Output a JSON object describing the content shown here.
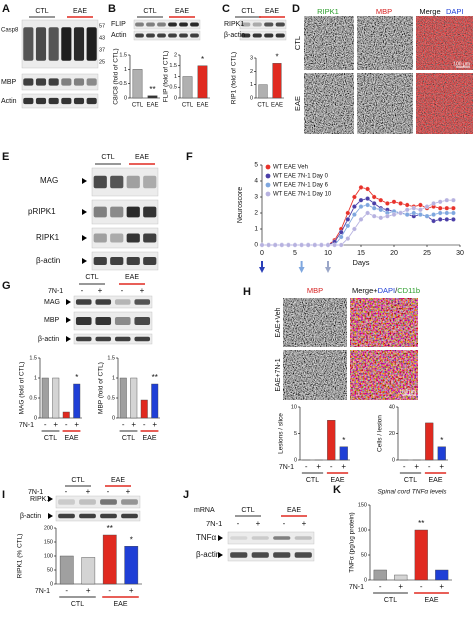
{
  "A": {
    "label": "A",
    "groups": [
      "CTL",
      "EAE"
    ],
    "bands": [
      "Casp8",
      "MBP",
      "Actin"
    ],
    "markers": [
      "57",
      "43",
      "37",
      "25"
    ]
  },
  "B": {
    "label": "B",
    "groups": [
      "CTL",
      "EAE"
    ],
    "bands": [
      "FLIP",
      "Actin"
    ],
    "charts": [
      {
        "type": "bar",
        "ylabel": "C8/C8 (fold of CTL)",
        "categories": [
          "CTL",
          "EAE"
        ],
        "values": [
          1.0,
          0.08
        ],
        "colors": [
          "#b0b0b0",
          "#333333"
        ],
        "significance": [
          null,
          "**"
        ],
        "ylim": [
          0,
          1.5
        ],
        "yticks": [
          0,
          0.5,
          1,
          1.5
        ]
      },
      {
        "type": "bar",
        "ylabel": "FLIP (fold of CTL)",
        "categories": [
          "CTL",
          "EAE"
        ],
        "values": [
          1.0,
          1.5
        ],
        "colors": [
          "#b0b0b0",
          "#e02a20"
        ],
        "significance": [
          null,
          "*"
        ],
        "ylim": [
          0,
          2
        ],
        "yticks": [
          0,
          0.5,
          1,
          1.5,
          2
        ]
      }
    ]
  },
  "C": {
    "label": "C",
    "groups": [
      "CTL",
      "EAE"
    ],
    "bands": [
      "RIPK1",
      "β-actin"
    ],
    "chart": {
      "type": "bar",
      "ylabel": "RIP1 (fold of CTL)",
      "categories": [
        "CTL",
        "EAE"
      ],
      "values": [
        1.0,
        2.6
      ],
      "colors": [
        "#b0b0b0",
        "#e02a20"
      ],
      "significance": [
        null,
        "*"
      ],
      "ylim": [
        0,
        3
      ],
      "yticks": [
        0,
        1,
        2,
        3
      ]
    }
  },
  "D": {
    "label": "D",
    "headers": [
      "RIPK1",
      "MBP",
      "Merge"
    ],
    "dapi": "DAPI",
    "rows": [
      "CTL",
      "EAE"
    ],
    "scale": "100 µm"
  },
  "E": {
    "label": "E",
    "groups": [
      "CTL",
      "EAE"
    ],
    "bands": [
      "MAG",
      "pRIPK1",
      "RIPK1",
      "β-actin"
    ]
  },
  "F": {
    "label": "F",
    "chart": {
      "type": "line",
      "ylabel": "Neuroscore",
      "xlabel": "Days",
      "x": [
        0,
        1,
        2,
        3,
        4,
        5,
        6,
        7,
        8,
        9,
        10,
        11,
        12,
        13,
        14,
        15,
        16,
        17,
        18,
        19,
        20,
        21,
        22,
        23,
        24,
        25,
        26,
        27,
        28,
        29
      ],
      "xlim": [
        0,
        30
      ],
      "xticks": [
        0,
        5,
        10,
        15,
        20,
        25,
        30
      ],
      "ylim": [
        0,
        5
      ],
      "yticks": [
        0,
        1,
        2,
        3,
        4,
        5
      ],
      "arrows": [
        0,
        6,
        10
      ],
      "arrow_colors": [
        "#2a3fb8",
        "#7fa7df",
        "#9aa6c8"
      ],
      "series": [
        {
          "name": "WT EAE Veh",
          "color": "#e8322b",
          "values": [
            0,
            0,
            0,
            0,
            0,
            0,
            0,
            0,
            0,
            0,
            0,
            0.3,
            1.0,
            2.0,
            3.0,
            3.6,
            3.5,
            3.0,
            2.8,
            2.6,
            2.7,
            2.6,
            2.5,
            2.4,
            2.5,
            2.3,
            2.4,
            2.3,
            2.3,
            2.3
          ]
        },
        {
          "name": "WT EAE 7N-1 Day 0",
          "color": "#4b3fa8",
          "values": [
            0,
            0,
            0,
            0,
            0,
            0,
            0,
            0,
            0,
            0,
            0,
            0.2,
            0.8,
            1.6,
            2.4,
            2.8,
            2.9,
            2.6,
            2.3,
            2.2,
            2.1,
            2.0,
            1.9,
            1.8,
            1.9,
            1.8,
            1.5,
            1.6,
            1.6,
            1.6
          ]
        },
        {
          "name": "WT EAE 7N-1 Day 6",
          "color": "#7fa7df",
          "values": [
            0,
            0,
            0,
            0,
            0,
            0,
            0,
            0,
            0,
            0,
            0,
            0,
            0.5,
            1.2,
            1.9,
            2.4,
            2.5,
            2.3,
            2.2,
            2.0,
            2.1,
            2.0,
            1.9,
            2.0,
            1.9,
            1.8,
            1.9,
            2.0,
            2.0,
            2.0
          ]
        },
        {
          "name": "WT EAE 7N-1 Day 10",
          "color": "#b7b2e0",
          "values": [
            0,
            0,
            0,
            0,
            0,
            0,
            0,
            0,
            0,
            0,
            0,
            0,
            0,
            0.4,
            1.0,
            1.6,
            2.0,
            1.8,
            1.7,
            1.8,
            1.9,
            2.0,
            2.2,
            2.3,
            2.2,
            2.4,
            2.6,
            2.7,
            2.8,
            2.8
          ]
        }
      ]
    }
  },
  "G": {
    "label": "G",
    "groups": [
      "CTL",
      "EAE"
    ],
    "factor": "7N-1",
    "conditions": [
      "-",
      "+",
      "-",
      "+"
    ],
    "bands": [
      "MAG",
      "MBP",
      "β-actin"
    ],
    "charts": [
      {
        "type": "bar",
        "ylabel": "MAG  (fold of CTL)",
        "factor": "7N-1",
        "categories": [
          "-",
          "+",
          "-",
          "+"
        ],
        "groups": [
          "CTL",
          "EAE"
        ],
        "values": [
          1.0,
          1.0,
          0.15,
          0.85
        ],
        "colors": [
          "#a0a0a0",
          "#d4d4d4",
          "#e02a20",
          "#1f3fd6"
        ],
        "significance": [
          null,
          null,
          null,
          "*"
        ],
        "ylim": [
          0,
          1.5
        ],
        "yticks": [
          0,
          0.5,
          1,
          1.5
        ]
      },
      {
        "type": "bar",
        "ylabel": "MBP  (fold of CTL)",
        "categories": [
          "-",
          "+",
          "-",
          "+"
        ],
        "groups": [
          "CTL",
          "EAE"
        ],
        "values": [
          1.0,
          1.0,
          0.45,
          0.85
        ],
        "colors": [
          "#a0a0a0",
          "#d4d4d4",
          "#e02a20",
          "#1f3fd6"
        ],
        "significance": [
          null,
          null,
          null,
          "**"
        ],
        "ylim": [
          0,
          1.5
        ],
        "yticks": [
          0,
          0.5,
          1,
          1.5
        ]
      }
    ]
  },
  "H": {
    "label": "H",
    "header": "MBP",
    "merge_header": [
      "Merge+",
      "DAPI",
      "/",
      "CD11b"
    ],
    "rows": [
      "EAE+Veh",
      "EAE+7N-1"
    ],
    "scale": "100 µm",
    "charts": [
      {
        "type": "bar",
        "ylabel": "Lesions / slice",
        "factor": "7N-1",
        "categories": [
          "-",
          "+",
          "-",
          "+"
        ],
        "groups": [
          "CTL",
          "EAE"
        ],
        "values": [
          0,
          0,
          7.5,
          2.5
        ],
        "colors": [
          "#a0a0a0",
          "#d4d4d4",
          "#e02a20",
          "#1f3fd6"
        ],
        "significance": [
          null,
          null,
          null,
          "*"
        ],
        "ylim": [
          0,
          10
        ],
        "yticks": [
          0,
          5,
          10
        ]
      },
      {
        "type": "bar",
        "ylabel": "Cells / lesion",
        "categories": [
          "-",
          "+",
          "-",
          "+"
        ],
        "groups": [
          "CTL",
          "EAE"
        ],
        "values": [
          0,
          0,
          28,
          10
        ],
        "colors": [
          "#a0a0a0",
          "#d4d4d4",
          "#e02a20",
          "#1f3fd6"
        ],
        "significance": [
          null,
          null,
          null,
          "*"
        ],
        "ylim": [
          0,
          40
        ],
        "yticks": [
          0,
          20,
          40
        ]
      }
    ]
  },
  "I": {
    "label": "I",
    "groups": [
      "CTL",
      "EAE"
    ],
    "factor": "7N-1",
    "conditions": [
      "-",
      "+",
      "-",
      "+"
    ],
    "bands": [
      "RIPK1",
      "β-actin"
    ],
    "chart": {
      "type": "bar",
      "ylabel": "RIPK1 (% CTL)",
      "factor": "7N-1",
      "categories": [
        "-",
        "+",
        "-",
        "+"
      ],
      "groups": [
        "CTL",
        "EAE"
      ],
      "values": [
        100,
        95,
        175,
        135
      ],
      "colors": [
        "#a0a0a0",
        "#d4d4d4",
        "#e02a20",
        "#1f3fd6"
      ],
      "significance": [
        null,
        null,
        "**",
        "*"
      ],
      "ylim": [
        0,
        200
      ],
      "yticks": [
        0,
        50,
        100,
        150,
        200
      ]
    }
  },
  "J": {
    "label": "J",
    "mrna": "mRNA",
    "groups": [
      "CTL",
      "EAE"
    ],
    "factor": "7N-1",
    "conditions": [
      "-",
      "+",
      "-",
      "+"
    ],
    "bands": [
      "TNFα",
      "β-actin"
    ]
  },
  "K": {
    "label": "K",
    "title": "Spinal cord TNFα levels",
    "chart": {
      "type": "bar",
      "ylabel": "TNFα (pg/ug protein)",
      "factor": "7N-1",
      "categories": [
        "-",
        "+",
        "-",
        "+"
      ],
      "groups": [
        "CTL",
        "EAE"
      ],
      "values": [
        20,
        10,
        100,
        20
      ],
      "colors": [
        "#a0a0a0",
        "#d4d4d4",
        "#e02a20",
        "#1f3fd6"
      ],
      "significance": [
        null,
        null,
        "**",
        null
      ],
      "ylim": [
        0,
        150
      ],
      "yticks": [
        0,
        50,
        100,
        150
      ]
    }
  }
}
